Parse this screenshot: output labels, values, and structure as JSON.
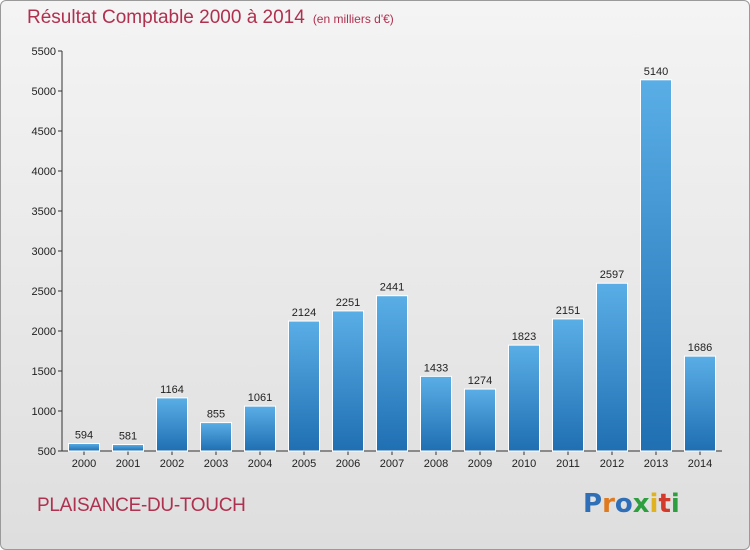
{
  "header": {
    "title": "Résultat Comptable 2000 à 2014",
    "unit": "(en milliers d'€)"
  },
  "footer": {
    "commune": "PLAISANCE-DU-TOUCH",
    "logo_text": "Proxiti"
  },
  "colors": {
    "title": "#b0304f",
    "bar_top": "#5aaee6",
    "bar_bottom": "#1f6fb2"
  },
  "chart_data": {
    "type": "bar",
    "title": "Résultat Comptable 2000 à 2014",
    "subtitle": "(en milliers d'€)",
    "categories": [
      "2000",
      "2001",
      "2002",
      "2003",
      "2004",
      "2005",
      "2006",
      "2007",
      "2008",
      "2009",
      "2010",
      "2011",
      "2012",
      "2013",
      "2014"
    ],
    "values": [
      594,
      581,
      1164,
      855,
      1061,
      2124,
      2251,
      2441,
      1433,
      1274,
      1823,
      2151,
      2597,
      5140,
      1686
    ],
    "ylim": [
      500,
      5500
    ],
    "yticks": [
      500,
      1000,
      1500,
      2000,
      2500,
      3000,
      3500,
      4000,
      4500,
      5000,
      5500
    ],
    "grid": false,
    "data_labels": true
  }
}
